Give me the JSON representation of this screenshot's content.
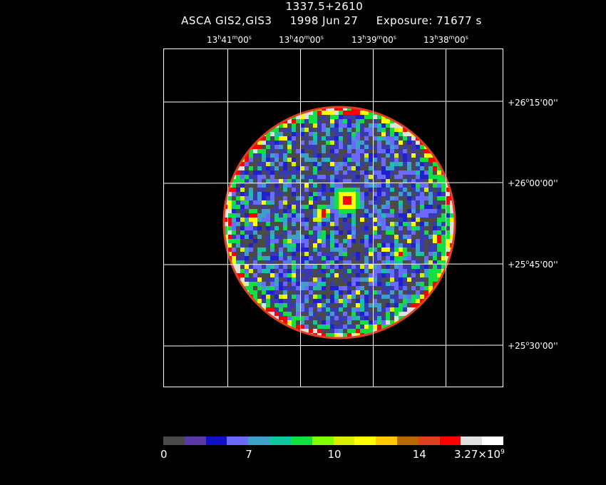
{
  "header": {
    "title": "1337.5+2610",
    "instrument": "ASCA GIS2,GIS3",
    "date": "1998 Jun 27",
    "exposure": "Exposure: 71677 s"
  },
  "ra_axis": [
    {
      "h": "13",
      "m": "41",
      "s": "00"
    },
    {
      "h": "13",
      "m": "40",
      "s": "00"
    },
    {
      "h": "13",
      "m": "39",
      "s": "00"
    },
    {
      "h": "13",
      "m": "38",
      "s": "00"
    }
  ],
  "dec_axis": [
    {
      "sign": "+",
      "d": "26",
      "m": "15",
      "s": "00"
    },
    {
      "sign": "+",
      "d": "26",
      "m": "00",
      "s": "00"
    },
    {
      "sign": "+",
      "d": "25",
      "m": "45",
      "s": "00"
    },
    {
      "sign": "+",
      "d": "25",
      "m": "30",
      "s": "00"
    }
  ],
  "colorbar": {
    "colors": [
      "#4a4a4a",
      "#5a3aa6",
      "#1010c8",
      "#6a6aff",
      "#3ca0c8",
      "#10c8a0",
      "#10e040",
      "#80ff00",
      "#d8f000",
      "#ffff00",
      "#ffc800",
      "#b86a00",
      "#e04020",
      "#ff0000",
      "#e0e0e0",
      "#ffffff"
    ],
    "labels": [
      {
        "text": "0",
        "frac": 0.0
      },
      {
        "text": "7",
        "frac": 0.25
      },
      {
        "text": "10",
        "frac": 0.5
      },
      {
        "text": "14",
        "frac": 0.75
      }
    ],
    "max_base": "3.27×10",
    "max_exp": "9"
  },
  "image": {
    "field_colors": [
      "#4a4a4a",
      "#3a3ab0",
      "#2020d0",
      "#6a6aff",
      "#3ca0c8",
      "#10c8a0",
      "#10e040",
      "#d8f000",
      "#ffff00",
      "#ff0000"
    ],
    "rim_colors": [
      "#e0e0e0",
      "#ff0000",
      "#ffff00",
      "#10e040"
    ],
    "hotspot_colors": [
      "#ff0000",
      "#ffff00",
      "#10e040",
      "#3ca0c8"
    ]
  }
}
